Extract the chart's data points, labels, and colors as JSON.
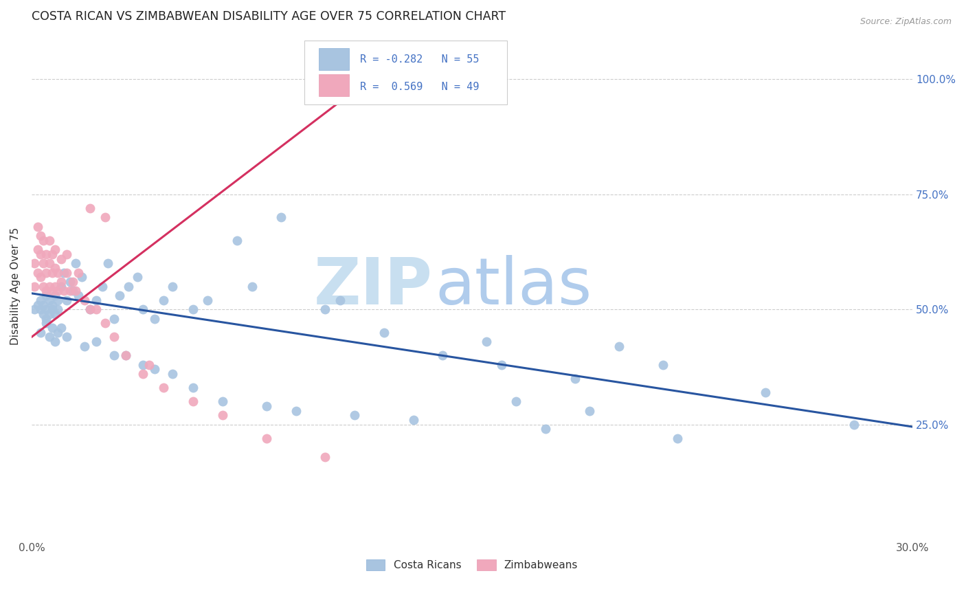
{
  "title": "COSTA RICAN VS ZIMBABWEAN DISABILITY AGE OVER 75 CORRELATION CHART",
  "source": "Source: ZipAtlas.com",
  "ylabel": "Disability Age Over 75",
  "costa_color": "#a8c4e0",
  "zimb_color": "#f0a8bc",
  "costa_line_color": "#2855a0",
  "zimb_line_color": "#d43060",
  "watermark_zip_color": "#cce0f0",
  "watermark_atlas_color": "#b8d4ec",
  "background_color": "#ffffff",
  "grid_color": "#cccccc",
  "costa_ricans_scatter_x": [
    0.001,
    0.002,
    0.003,
    0.003,
    0.004,
    0.004,
    0.005,
    0.005,
    0.005,
    0.006,
    0.006,
    0.007,
    0.007,
    0.008,
    0.008,
    0.009,
    0.009,
    0.01,
    0.011,
    0.012,
    0.013,
    0.014,
    0.015,
    0.016,
    0.017,
    0.02,
    0.022,
    0.024,
    0.026,
    0.028,
    0.03,
    0.033,
    0.036,
    0.038,
    0.042,
    0.045,
    0.048,
    0.055,
    0.06,
    0.07,
    0.075,
    0.085,
    0.1,
    0.105,
    0.12,
    0.14,
    0.155,
    0.16,
    0.185,
    0.2,
    0.215,
    0.25,
    0.165,
    0.28,
    0.19
  ],
  "costa_ricans_scatter_y": [
    0.5,
    0.51,
    0.52,
    0.5,
    0.49,
    0.51,
    0.53,
    0.5,
    0.48,
    0.52,
    0.49,
    0.51,
    0.5,
    0.53,
    0.49,
    0.52,
    0.5,
    0.55,
    0.58,
    0.52,
    0.56,
    0.54,
    0.6,
    0.53,
    0.57,
    0.5,
    0.52,
    0.55,
    0.6,
    0.48,
    0.53,
    0.55,
    0.57,
    0.5,
    0.48,
    0.52,
    0.55,
    0.5,
    0.52,
    0.65,
    0.55,
    0.7,
    0.5,
    0.52,
    0.45,
    0.4,
    0.43,
    0.38,
    0.35,
    0.42,
    0.38,
    0.32,
    0.3,
    0.25,
    0.28
  ],
  "costa_ricans_scatter_x2": [
    0.003,
    0.005,
    0.006,
    0.007,
    0.008,
    0.009,
    0.01,
    0.012,
    0.018,
    0.022,
    0.028,
    0.032,
    0.038,
    0.042,
    0.048,
    0.055,
    0.065,
    0.08,
    0.09,
    0.11,
    0.13,
    0.175,
    0.22
  ],
  "costa_ricans_scatter_y2": [
    0.45,
    0.47,
    0.44,
    0.46,
    0.43,
    0.45,
    0.46,
    0.44,
    0.42,
    0.43,
    0.4,
    0.4,
    0.38,
    0.37,
    0.36,
    0.33,
    0.3,
    0.29,
    0.28,
    0.27,
    0.26,
    0.24,
    0.22
  ],
  "zimbabwe_scatter_x": [
    0.001,
    0.001,
    0.002,
    0.002,
    0.002,
    0.003,
    0.003,
    0.003,
    0.004,
    0.004,
    0.004,
    0.005,
    0.005,
    0.005,
    0.006,
    0.006,
    0.006,
    0.007,
    0.007,
    0.007,
    0.008,
    0.008,
    0.008,
    0.009,
    0.009,
    0.01,
    0.01,
    0.011,
    0.012,
    0.012,
    0.013,
    0.014,
    0.015,
    0.016,
    0.018,
    0.02,
    0.022,
    0.025,
    0.028,
    0.032,
    0.038,
    0.045,
    0.055,
    0.065,
    0.08,
    0.1,
    0.04,
    0.02,
    0.025
  ],
  "zimbabwe_scatter_y": [
    0.55,
    0.6,
    0.58,
    0.63,
    0.68,
    0.57,
    0.62,
    0.66,
    0.55,
    0.6,
    0.65,
    0.54,
    0.58,
    0.62,
    0.55,
    0.6,
    0.65,
    0.54,
    0.58,
    0.62,
    0.55,
    0.59,
    0.63,
    0.54,
    0.58,
    0.56,
    0.61,
    0.54,
    0.58,
    0.62,
    0.54,
    0.56,
    0.54,
    0.58,
    0.52,
    0.5,
    0.5,
    0.47,
    0.44,
    0.4,
    0.36,
    0.33,
    0.3,
    0.27,
    0.22,
    0.18,
    0.38,
    0.72,
    0.7
  ],
  "costa_line_x": [
    0.0,
    0.3
  ],
  "costa_line_y": [
    0.535,
    0.245
  ],
  "zimb_line_x": [
    0.0,
    0.115
  ],
  "zimb_line_y": [
    0.44,
    1.0
  ],
  "x_tick_positions": [
    0.0,
    0.05,
    0.1,
    0.15,
    0.2,
    0.25,
    0.3
  ],
  "x_tick_labels": [
    "0.0%",
    "",
    "",
    "",
    "",
    "",
    "30.0%"
  ],
  "y_tick_positions": [
    0.25,
    0.5,
    0.75,
    1.0
  ],
  "y_tick_labels": [
    "25.0%",
    "50.0%",
    "75.0%",
    "100.0%"
  ]
}
